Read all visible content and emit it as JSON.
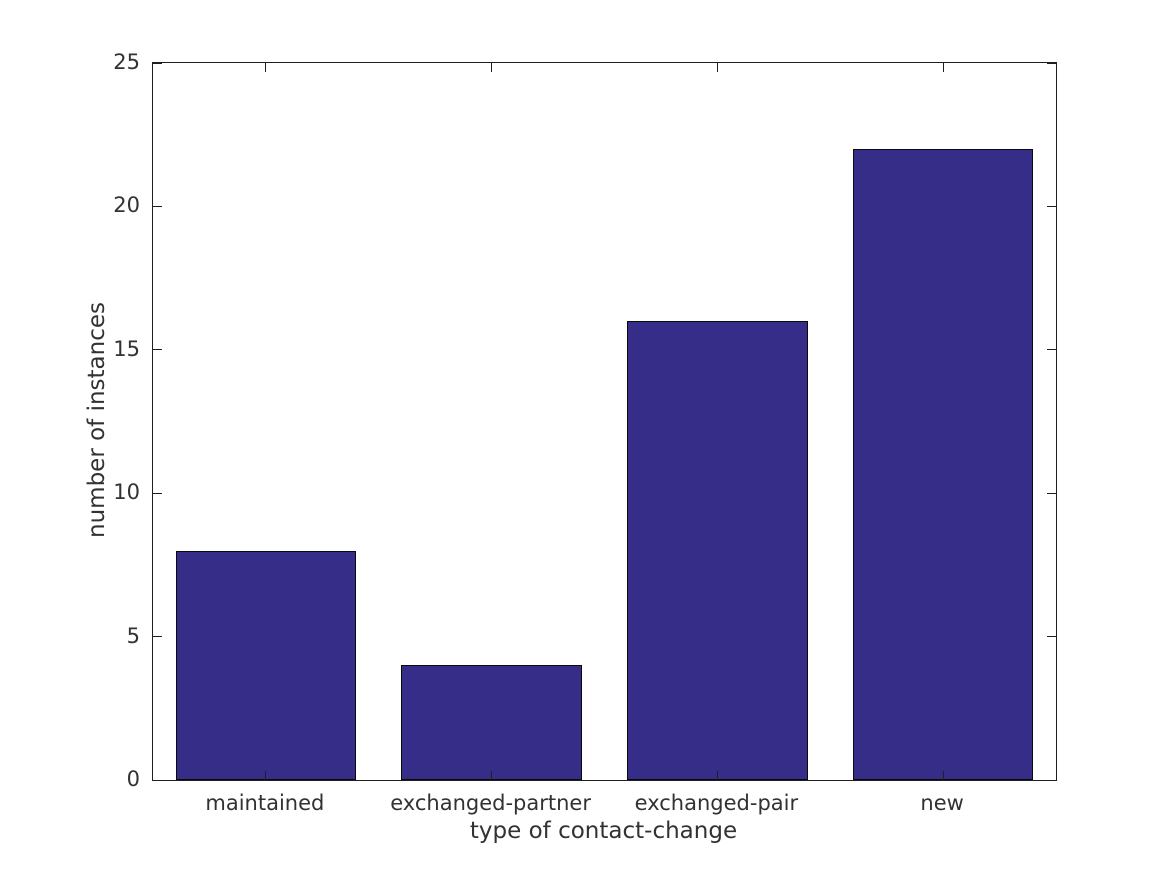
{
  "chart_data": {
    "type": "bar",
    "categories": [
      "maintained",
      "exchanged-partner",
      "exchanged-pair",
      "new"
    ],
    "values": [
      8,
      4,
      16,
      22
    ],
    "title": "",
    "xlabel": "type of contact-change",
    "ylabel": "number of instances",
    "ylim": [
      0,
      25
    ],
    "yticks": [
      0,
      5,
      10,
      15,
      20,
      25
    ],
    "bar_color": "#352d87",
    "bar_edge_color": "#0a0a0a",
    "axis_color": "#1f1f1f",
    "text_color": "#323232",
    "grid": false,
    "legend_position": "none",
    "bar_width_fraction": 0.8,
    "tick_direction": "in",
    "box": true
  }
}
